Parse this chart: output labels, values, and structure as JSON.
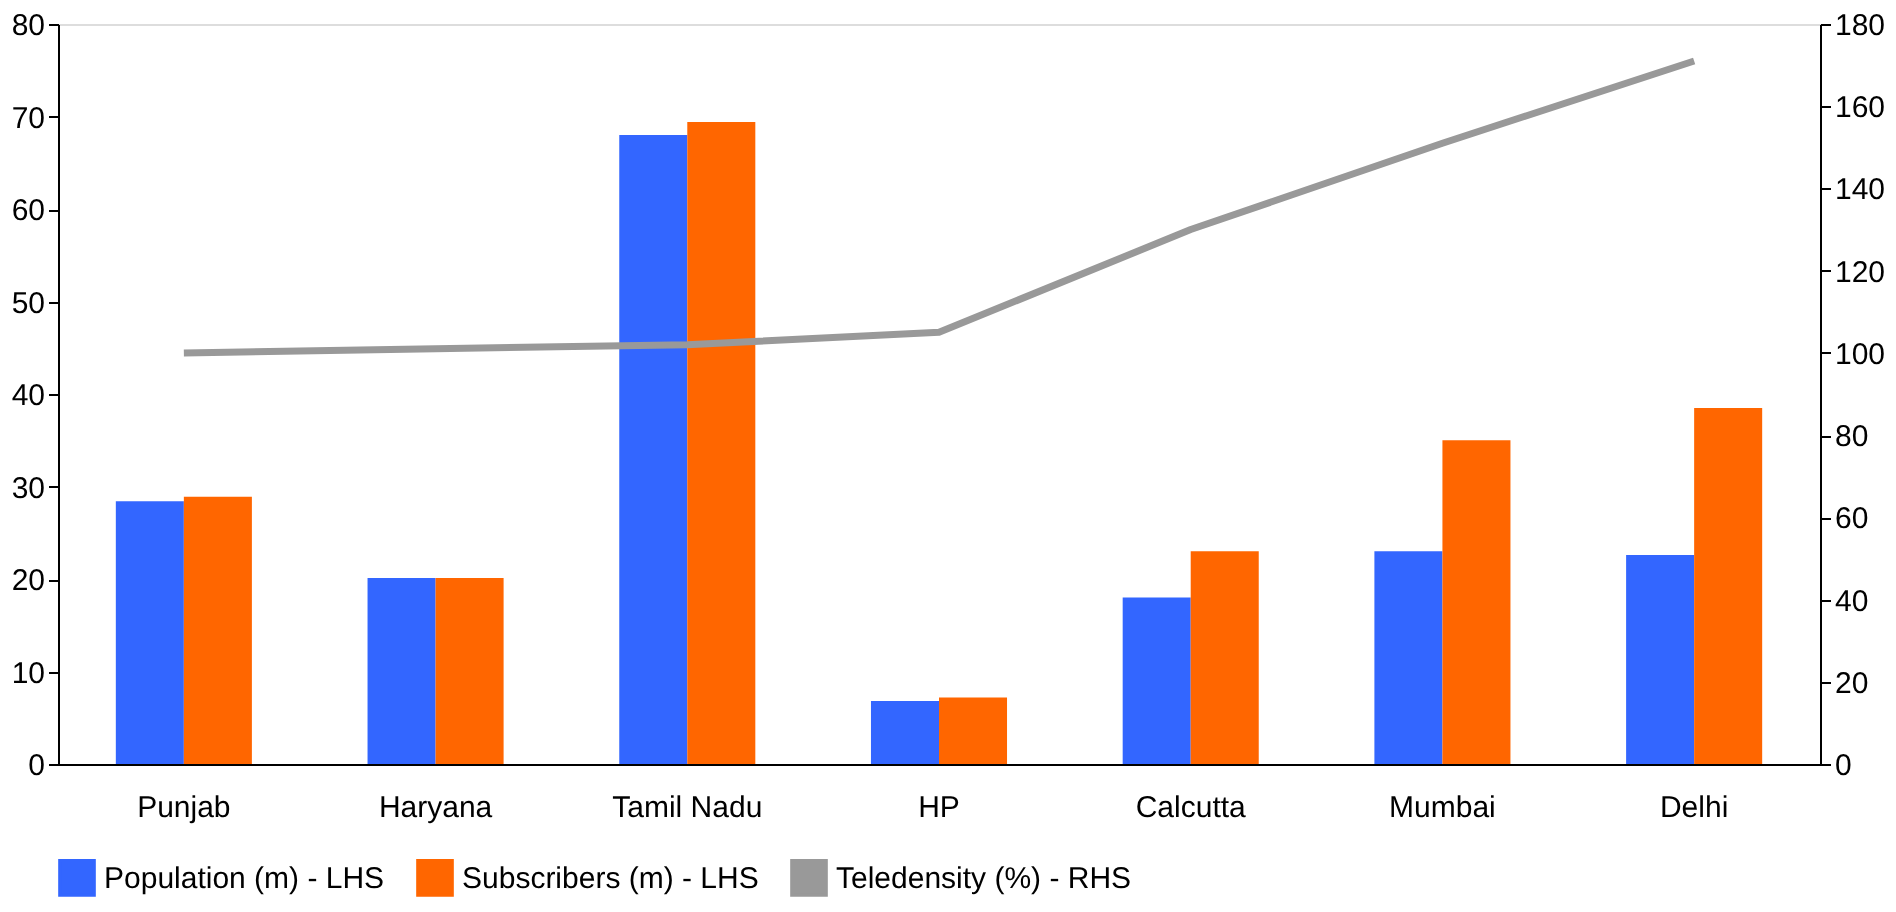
{
  "chart_data": {
    "type": "bar",
    "categories": [
      "Punjab",
      "Haryana",
      "Tamil Nadu",
      "HP",
      "Calcutta",
      "Mumbai",
      "Delhi"
    ],
    "series": [
      {
        "name": "Population (m) - LHS",
        "color": "#3366ff",
        "values": [
          28.4,
          20.1,
          68.0,
          6.8,
          18.0,
          23.0,
          22.6
        ]
      },
      {
        "name": "Subscribers (m) - LHS",
        "color": "#ff6600",
        "values": [
          28.9,
          20.1,
          69.4,
          7.2,
          23.0,
          35.0,
          38.5
        ]
      },
      {
        "name": "Teledensity (%) - RHS",
        "color": "#999999",
        "type": "line",
        "axis": "y2",
        "values": [
          100,
          101,
          102,
          105,
          130,
          151,
          171
        ]
      }
    ],
    "ylim": [
      0,
      80
    ],
    "yticks": [
      0,
      10,
      20,
      30,
      40,
      50,
      60,
      70,
      80
    ],
    "y2lim": [
      0,
      180
    ],
    "y2ticks": [
      0,
      20,
      40,
      60,
      80,
      100,
      120,
      140,
      160,
      180
    ],
    "grid": false,
    "legend": "bottom",
    "marker": "none",
    "line_style": "solid"
  }
}
